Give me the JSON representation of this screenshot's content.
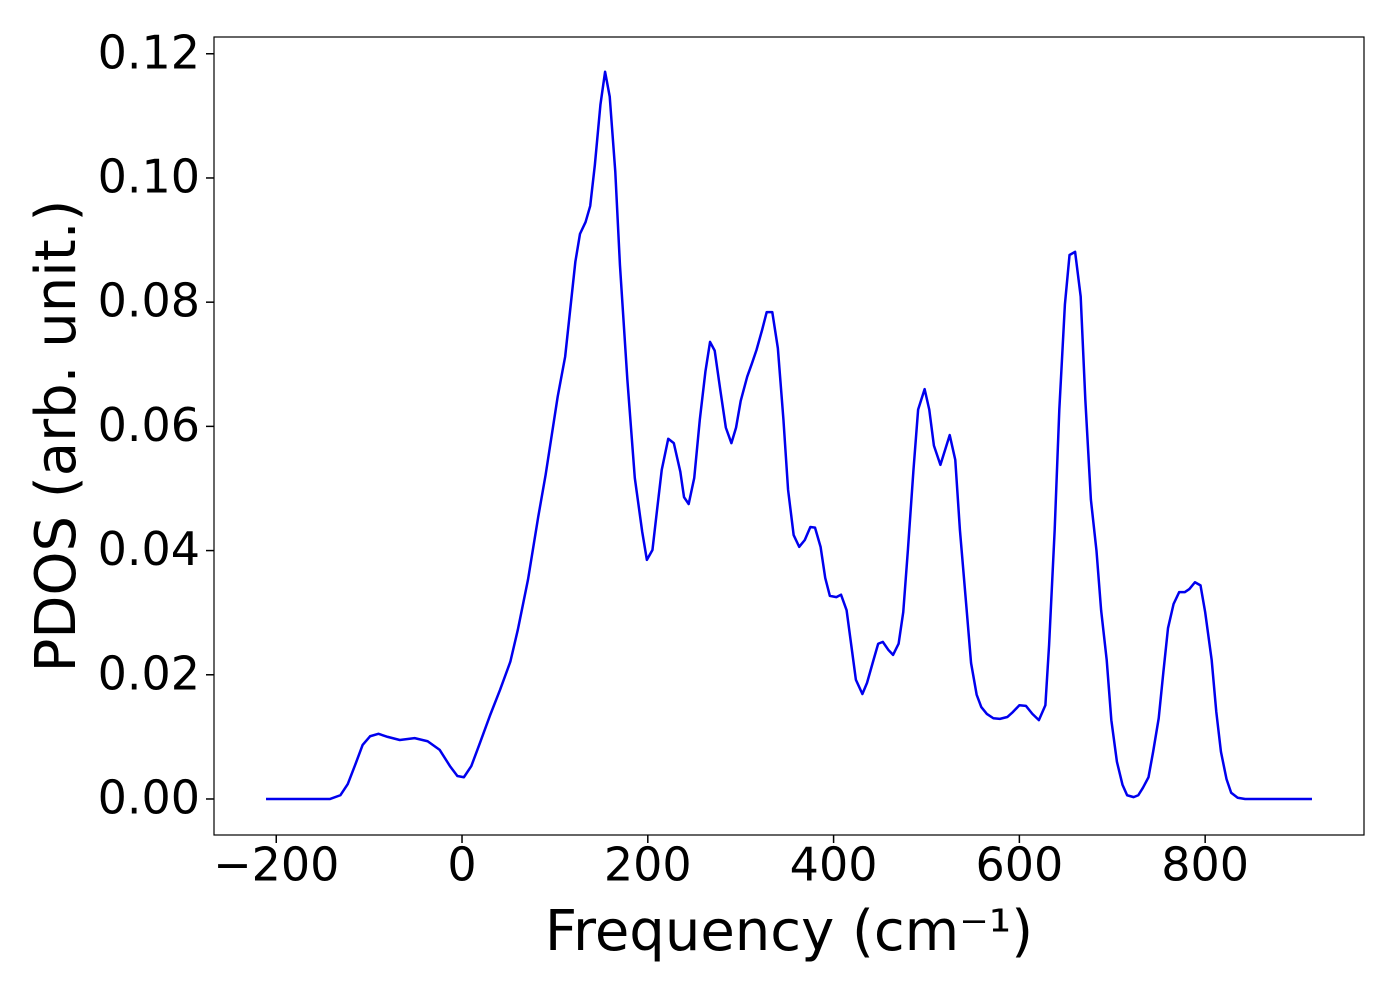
{
  "chart_data": {
    "type": "line",
    "xlabel": "Frequency (cm⁻¹)",
    "ylabel": "PDOS (arb. unit.)",
    "xlim": [
      -267,
      971
    ],
    "ylim": [
      -0.0058,
      0.1227
    ],
    "xticks": [
      {
        "value": -200,
        "label": "−200"
      },
      0,
      200,
      400,
      600,
      800
    ],
    "yticks": [
      {
        "value": 0,
        "label": "0.00"
      },
      0.02,
      0.04,
      0.06,
      0.08,
      {
        "value": 0.1,
        "label": "0.10"
      },
      0.12
    ],
    "grid": false,
    "x": [
      -211,
      -142,
      -131,
      -123,
      -115,
      -107,
      -99,
      -90,
      -80,
      -67,
      -51,
      -37,
      -24,
      -13,
      -5,
      2,
      10,
      19,
      30,
      41,
      52,
      60,
      71,
      82,
      90,
      103,
      111,
      122,
      127,
      133,
      138,
      143,
      149,
      154,
      159,
      165,
      170,
      178,
      186,
      194,
      199,
      205,
      210,
      215,
      222,
      228,
      235,
      239,
      244,
      250,
      256,
      262,
      267,
      272,
      278,
      284,
      290,
      295,
      300,
      307,
      312,
      317,
      323,
      328,
      334,
      340,
      346,
      351,
      357,
      363,
      369,
      375,
      380,
      386,
      391,
      396,
      403,
      408,
      414,
      419,
      424,
      431,
      436,
      443,
      448,
      453,
      459,
      464,
      470,
      475,
      480,
      486,
      491,
      498,
      503,
      508,
      515,
      520,
      525,
      531,
      536,
      543,
      548,
      554,
      559,
      565,
      572,
      579,
      587,
      593,
      600,
      607,
      614,
      621,
      628,
      632,
      638,
      643,
      649,
      654,
      660,
      666,
      671,
      677,
      683,
      688,
      694,
      699,
      705,
      711,
      716,
      723,
      728,
      733,
      739,
      744,
      750,
      755,
      760,
      766,
      772,
      778,
      783,
      789,
      795,
      800,
      807,
      812,
      817,
      823,
      828,
      835,
      843,
      915
    ],
    "series": [
      {
        "name": "PDOS",
        "color": "#0000ee",
        "values": [
          0,
          0,
          0.0006,
          0.0024,
          0.0055,
          0.0087,
          0.0101,
          0.0105,
          0.01,
          0.0095,
          0.0098,
          0.0093,
          0.0079,
          0.0053,
          0.0037,
          0.0035,
          0.0053,
          0.0089,
          0.0134,
          0.0176,
          0.0221,
          0.0272,
          0.0353,
          0.0454,
          0.0522,
          0.0648,
          0.0712,
          0.0865,
          0.091,
          0.0929,
          0.0955,
          0.1021,
          0.1118,
          0.1171,
          0.1131,
          0.101,
          0.086,
          0.0675,
          0.0517,
          0.043,
          0.0385,
          0.0401,
          0.0466,
          0.053,
          0.058,
          0.0573,
          0.0527,
          0.0486,
          0.0475,
          0.0517,
          0.0611,
          0.0688,
          0.0736,
          0.0722,
          0.0659,
          0.0598,
          0.0573,
          0.0598,
          0.0641,
          0.068,
          0.0701,
          0.0723,
          0.0755,
          0.0784,
          0.0784,
          0.0726,
          0.0611,
          0.0498,
          0.0425,
          0.0406,
          0.0417,
          0.0438,
          0.0437,
          0.0406,
          0.0356,
          0.0327,
          0.0325,
          0.0329,
          0.0304,
          0.0248,
          0.0192,
          0.0169,
          0.0187,
          0.0224,
          0.025,
          0.0253,
          0.024,
          0.0232,
          0.025,
          0.0301,
          0.0401,
          0.053,
          0.0627,
          0.066,
          0.0627,
          0.0569,
          0.0538,
          0.0562,
          0.0586,
          0.0546,
          0.0433,
          0.0309,
          0.0219,
          0.0168,
          0.0148,
          0.0137,
          0.013,
          0.0129,
          0.0132,
          0.014,
          0.0151,
          0.015,
          0.0137,
          0.0127,
          0.0151,
          0.0248,
          0.0433,
          0.0627,
          0.0796,
          0.0876,
          0.0881,
          0.0809,
          0.0643,
          0.0482,
          0.04,
          0.0304,
          0.0224,
          0.0127,
          0.006,
          0.0023,
          0.0006,
          0.0003,
          0.0006,
          0.0018,
          0.0035,
          0.0076,
          0.013,
          0.0204,
          0.0275,
          0.0314,
          0.0333,
          0.0333,
          0.0338,
          0.0349,
          0.0344,
          0.0301,
          0.0224,
          0.014,
          0.0076,
          0.0032,
          0.001,
          0.0002,
          0,
          0
        ]
      }
    ]
  }
}
